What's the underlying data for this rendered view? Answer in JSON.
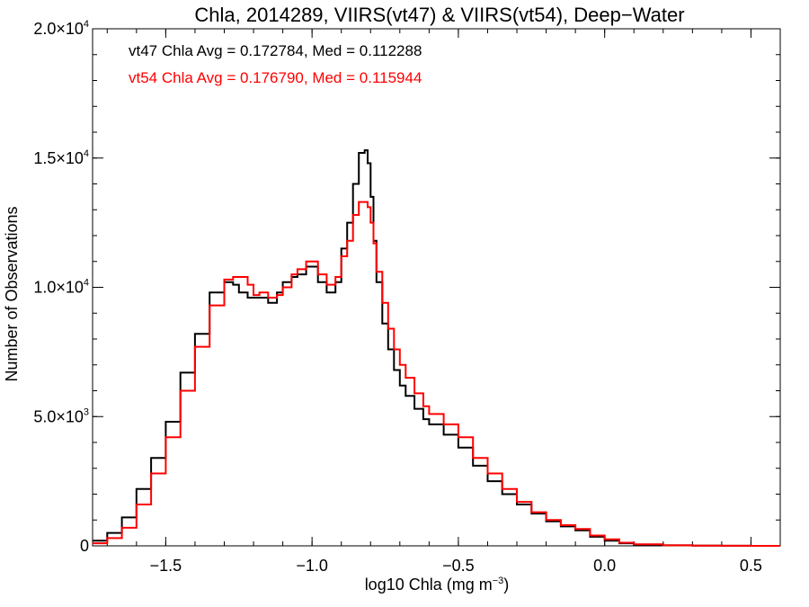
{
  "chart_data": {
    "type": "line",
    "title": "Chla, 2014289, VIIRS(vt47) & VIIRS(vt54), Deep−Water",
    "xlabel": "log10 Chla (mg m",
    "xlabel_sup": "−3",
    "xlabel_tail": ")",
    "ylabel": "Number of Observations",
    "xlim": [
      -1.75,
      0.6
    ],
    "ylim": [
      0,
      20000
    ],
    "x_ticks": [
      {
        "value": -1.5,
        "label": "−1.5"
      },
      {
        "value": -1.0,
        "label": "−1.0"
      },
      {
        "value": -0.5,
        "label": "−0.5"
      },
      {
        "value": 0.0,
        "label": "0.0"
      },
      {
        "value": 0.5,
        "label": "0.5"
      }
    ],
    "y_ticks": [
      {
        "value": 0,
        "base": "0",
        "exp": ""
      },
      {
        "value": 5000,
        "base": "5.0×10",
        "exp": "3"
      },
      {
        "value": 10000,
        "base": "1.0×10",
        "exp": "4"
      },
      {
        "value": 15000,
        "base": "1.5×10",
        "exp": "4"
      },
      {
        "value": 20000,
        "base": "2.0×10",
        "exp": "4"
      }
    ],
    "grid": false,
    "annotations": [
      {
        "text": "vt47 Chla Avg = 0.172784, Med = 0.112288",
        "color": "#000000"
      },
      {
        "text": "vt54 Chla Avg = 0.176790, Med = 0.115944",
        "color": "#ff0000"
      }
    ],
    "series": [
      {
        "color": "#000000",
        "x": [
          -1.75,
          -1.7,
          -1.65,
          -1.6,
          -1.55,
          -1.5,
          -1.45,
          -1.4,
          -1.35,
          -1.3,
          -1.27,
          -1.25,
          -1.22,
          -1.2,
          -1.18,
          -1.15,
          -1.12,
          -1.1,
          -1.07,
          -1.05,
          -1.02,
          -1.0,
          -0.98,
          -0.95,
          -0.92,
          -0.9,
          -0.88,
          -0.86,
          -0.84,
          -0.82,
          -0.81,
          -0.8,
          -0.79,
          -0.78,
          -0.76,
          -0.74,
          -0.72,
          -0.7,
          -0.68,
          -0.65,
          -0.62,
          -0.6,
          -0.55,
          -0.5,
          -0.45,
          -0.4,
          -0.35,
          -0.3,
          -0.25,
          -0.2,
          -0.15,
          -0.1,
          -0.05,
          0.0,
          0.05,
          0.1,
          0.2,
          0.3,
          0.4,
          0.5,
          0.6
        ],
        "values": [
          200,
          500,
          1100,
          2200,
          3400,
          4800,
          6700,
          8200,
          9800,
          10200,
          10100,
          9800,
          9600,
          9600,
          9600,
          9400,
          9800,
          10200,
          10400,
          10500,
          10800,
          10800,
          10200,
          9800,
          10200,
          11500,
          12500,
          14000,
          15200,
          15300,
          14800,
          13500,
          11800,
          10200,
          8600,
          7600,
          6800,
          6200,
          5800,
          5300,
          4900,
          4700,
          4300,
          3800,
          3100,
          2500,
          2000,
          1600,
          1250,
          950,
          750,
          600,
          350,
          200,
          100,
          50,
          20,
          10,
          5,
          0,
          0
        ]
      },
      {
        "color": "#ff0000",
        "x": [
          -1.75,
          -1.7,
          -1.65,
          -1.6,
          -1.55,
          -1.5,
          -1.45,
          -1.4,
          -1.35,
          -1.3,
          -1.27,
          -1.25,
          -1.22,
          -1.2,
          -1.18,
          -1.15,
          -1.12,
          -1.1,
          -1.07,
          -1.05,
          -1.02,
          -1.0,
          -0.98,
          -0.95,
          -0.92,
          -0.9,
          -0.88,
          -0.86,
          -0.84,
          -0.82,
          -0.81,
          -0.8,
          -0.79,
          -0.78,
          -0.76,
          -0.74,
          -0.72,
          -0.7,
          -0.68,
          -0.65,
          -0.62,
          -0.6,
          -0.55,
          -0.5,
          -0.45,
          -0.4,
          -0.35,
          -0.3,
          -0.25,
          -0.2,
          -0.15,
          -0.1,
          -0.05,
          0.0,
          0.05,
          0.1,
          0.2,
          0.3,
          0.4,
          0.5,
          0.6
        ],
        "values": [
          100,
          300,
          700,
          1600,
          2800,
          4200,
          6000,
          7700,
          9300,
          10300,
          10400,
          10400,
          10100,
          9700,
          9800,
          9600,
          9700,
          10000,
          10500,
          10700,
          11000,
          11000,
          10500,
          10100,
          10400,
          11200,
          11800,
          12800,
          13300,
          13300,
          13100,
          12500,
          11700,
          10600,
          9400,
          8400,
          7600,
          7000,
          6500,
          5900,
          5400,
          5100,
          4700,
          4200,
          3400,
          2800,
          2200,
          1700,
          1300,
          1000,
          800,
          650,
          400,
          250,
          120,
          60,
          20,
          10,
          5,
          0,
          0
        ]
      }
    ]
  }
}
